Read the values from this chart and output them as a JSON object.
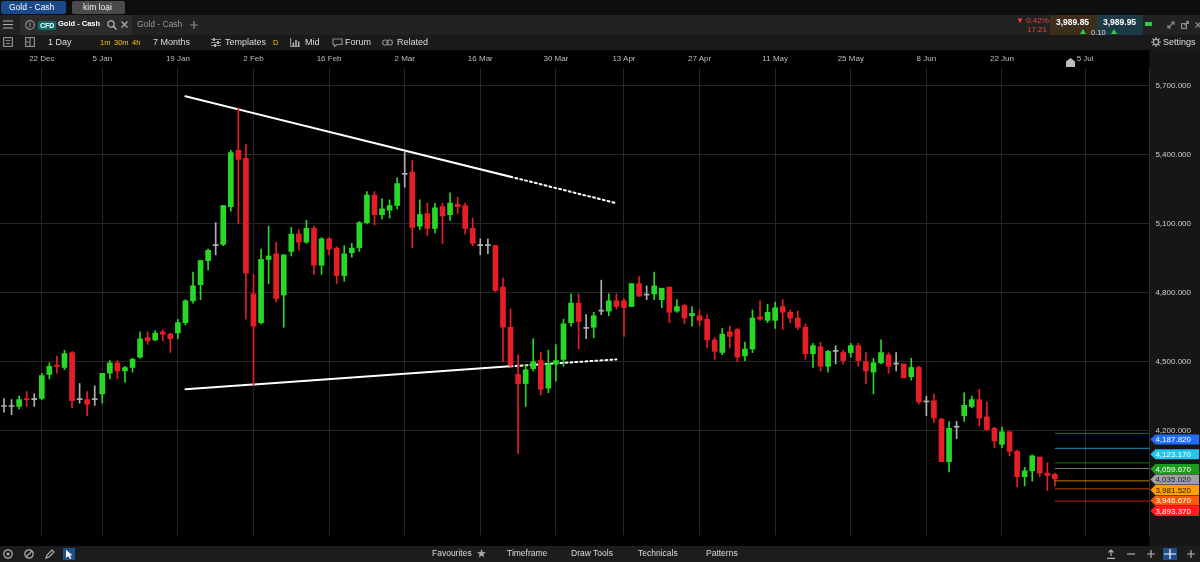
{
  "chart_data": {
    "type": "candlestick",
    "categories": [
      null,
      null,
      null,
      null,
      null,
      "22 Dec",
      null,
      null,
      null,
      null,
      null,
      null,
      null,
      "5 Jan",
      null,
      null,
      null,
      null,
      null,
      null,
      null,
      null,
      null,
      "19 Jan",
      null,
      null,
      null,
      null,
      null,
      null,
      null,
      null,
      null,
      "2 Feb",
      null,
      null,
      null,
      null,
      null,
      null,
      null,
      null,
      null,
      "16 Feb",
      null,
      null,
      null,
      null,
      null,
      null,
      null,
      null,
      null,
      "2 Mar",
      null,
      null,
      null,
      null,
      null,
      null,
      null,
      null,
      null,
      "16 Mar",
      null,
      null,
      null,
      null,
      null,
      null,
      null,
      null,
      null,
      "30 Mar",
      null,
      null,
      null,
      null,
      null,
      null,
      null,
      null,
      "13 Apr",
      null,
      null,
      null,
      null,
      null,
      null,
      null,
      null,
      null,
      "27 Apr",
      null,
      null,
      null,
      null,
      null,
      null,
      null,
      null,
      null,
      "11 May",
      null,
      null,
      null,
      null,
      null,
      null,
      null,
      null,
      null,
      "25 May",
      null,
      null,
      null,
      null,
      null,
      null,
      null,
      null,
      null,
      "8 Jun",
      null,
      null,
      null,
      null,
      null,
      null,
      null,
      null,
      null,
      "22 Jun",
      null,
      null,
      null,
      null,
      null,
      null,
      null,
      null,
      null,
      null,
      "5 Jul",
      null,
      null,
      null,
      null,
      null,
      null,
      null,
      null
    ],
    "ohlc": [
      [
        4305,
        4340,
        4280,
        4305
      ],
      [
        4305,
        4335,
        4270,
        4305
      ],
      [
        4305,
        4350,
        4295,
        4335
      ],
      [
        4340,
        4370,
        4305,
        4335
      ],
      [
        4335,
        4360,
        4305,
        4335
      ],
      [
        4340,
        4450,
        4335,
        4440
      ],
      [
        4445,
        4495,
        4425,
        4480
      ],
      [
        4485,
        4525,
        4450,
        4480
      ],
      [
        4475,
        4550,
        4465,
        4535
      ],
      [
        4540,
        4545,
        4300,
        4330
      ],
      [
        4335,
        4405,
        4320,
        4335
      ],
      [
        4335,
        4370,
        4265,
        4315
      ],
      [
        4335,
        4395,
        4310,
        4335
      ],
      [
        4360,
        4450,
        4320,
        4450
      ],
      [
        4450,
        4505,
        4425,
        4495
      ],
      [
        4495,
        4505,
        4425,
        4460
      ],
      [
        4460,
        4480,
        4410,
        4475
      ],
      [
        4475,
        4515,
        4455,
        4510
      ],
      [
        4520,
        4630,
        4515,
        4600
      ],
      [
        4605,
        4630,
        4575,
        4590
      ],
      [
        4595,
        4635,
        4590,
        4625
      ],
      [
        4630,
        4640,
        4590,
        4620
      ],
      [
        4620,
        4625,
        4540,
        4600
      ],
      [
        4625,
        4685,
        4600,
        4670
      ],
      [
        4670,
        4770,
        4660,
        4765
      ],
      [
        4765,
        4890,
        4755,
        4830
      ],
      [
        4835,
        4940,
        4770,
        4940
      ],
      [
        4940,
        4990,
        4900,
        4985
      ],
      [
        5005,
        5105,
        4965,
        5005
      ],
      [
        5010,
        5180,
        5005,
        5180
      ],
      [
        5175,
        5420,
        5155,
        5410
      ],
      [
        5420,
        5605,
        5100,
        5380
      ],
      [
        5385,
        5445,
        4685,
        4885
      ],
      [
        4795,
        4880,
        4400,
        4655
      ],
      [
        4670,
        4990,
        4665,
        4945
      ],
      [
        4945,
        5090,
        4840,
        4960
      ],
      [
        4970,
        5020,
        4760,
        4775
      ],
      [
        4790,
        4965,
        4650,
        4965
      ],
      [
        4980,
        5085,
        4960,
        5055
      ],
      [
        5055,
        5075,
        4985,
        5020
      ],
      [
        5020,
        5115,
        5015,
        5080
      ],
      [
        5080,
        5090,
        4880,
        4920
      ],
      [
        4920,
        5040,
        4880,
        5035
      ],
      [
        5035,
        5040,
        4965,
        4990
      ],
      [
        4995,
        5000,
        4840,
        4875
      ],
      [
        4875,
        5005,
        4850,
        4970
      ],
      [
        4975,
        5015,
        4955,
        4995
      ],
      [
        4995,
        5110,
        4980,
        5105
      ],
      [
        5105,
        5240,
        5100,
        5225
      ],
      [
        5225,
        5240,
        5095,
        5140
      ],
      [
        5140,
        5210,
        5120,
        5165
      ],
      [
        5160,
        5205,
        5125,
        5180
      ],
      [
        5180,
        5300,
        5165,
        5275
      ],
      [
        5315,
        5415,
        5260,
        5315
      ],
      [
        5325,
        5375,
        4995,
        5085
      ],
      [
        5090,
        5205,
        5075,
        5140
      ],
      [
        5145,
        5190,
        5050,
        5080
      ],
      [
        5080,
        5190,
        5060,
        5170
      ],
      [
        5175,
        5190,
        5015,
        5135
      ],
      [
        5140,
        5235,
        5115,
        5190
      ],
      [
        5185,
        5215,
        5145,
        5175
      ],
      [
        5180,
        5190,
        5055,
        5080
      ],
      [
        5080,
        5125,
        5005,
        5015
      ],
      [
        5005,
        5035,
        4965,
        5005
      ],
      [
        5005,
        5035,
        4970,
        5005
      ],
      [
        5005,
        5005,
        4805,
        4810
      ],
      [
        4825,
        4865,
        4500,
        4650
      ],
      [
        4650,
        4730,
        4475,
        4485
      ],
      [
        4445,
        4530,
        4100,
        4405
      ],
      [
        4405,
        4485,
        4305,
        4465
      ],
      [
        4470,
        4600,
        4460,
        4500
      ],
      [
        4505,
        4540,
        4355,
        4380
      ],
      [
        4385,
        4550,
        4365,
        4490
      ],
      [
        4490,
        4575,
        4415,
        4505
      ],
      [
        4510,
        4685,
        4480,
        4665
      ],
      [
        4670,
        4795,
        4655,
        4755
      ],
      [
        4755,
        4795,
        4555,
        4675
      ],
      [
        4645,
        4705,
        4600,
        4645
      ],
      [
        4650,
        4715,
        4605,
        4700
      ],
      [
        4720,
        4855,
        4705,
        4720
      ],
      [
        4720,
        4795,
        4700,
        4765
      ],
      [
        4765,
        4795,
        4730,
        4740
      ],
      [
        4765,
        4775,
        4610,
        4735
      ],
      [
        4740,
        4840,
        4740,
        4840
      ],
      [
        4840,
        4870,
        4785,
        4785
      ],
      [
        4790,
        4830,
        4770,
        4790
      ],
      [
        4795,
        4890,
        4770,
        4830
      ],
      [
        4770,
        4820,
        4735,
        4820
      ],
      [
        4825,
        4825,
        4670,
        4715
      ],
      [
        4720,
        4770,
        4715,
        4740
      ],
      [
        4745,
        4750,
        4665,
        4690
      ],
      [
        4700,
        4740,
        4655,
        4710
      ],
      [
        4700,
        4725,
        4655,
        4680
      ],
      [
        4685,
        4705,
        4560,
        4595
      ],
      [
        4595,
        4605,
        4510,
        4545
      ],
      [
        4540,
        4645,
        4530,
        4620
      ],
      [
        4630,
        4655,
        4560,
        4610
      ],
      [
        4640,
        4645,
        4500,
        4520
      ],
      [
        4525,
        4585,
        4505,
        4555
      ],
      [
        4555,
        4725,
        4540,
        4690
      ],
      [
        4695,
        4765,
        4680,
        4685
      ],
      [
        4680,
        4750,
        4670,
        4715
      ],
      [
        4680,
        4760,
        4645,
        4735
      ],
      [
        4740,
        4770,
        4640,
        4715
      ],
      [
        4715,
        4725,
        4670,
        4690
      ],
      [
        4690,
        4720,
        4640,
        4650
      ],
      [
        4650,
        4665,
        4510,
        4535
      ],
      [
        4535,
        4580,
        4475,
        4570
      ],
      [
        4565,
        4585,
        4460,
        4480
      ],
      [
        4480,
        4550,
        4455,
        4545
      ],
      [
        4545,
        4570,
        4490,
        4545
      ],
      [
        4540,
        4550,
        4490,
        4505
      ],
      [
        4540,
        4580,
        4520,
        4570
      ],
      [
        4570,
        4580,
        4480,
        4505
      ],
      [
        4500,
        4540,
        4405,
        4460
      ],
      [
        4455,
        4515,
        4360,
        4495
      ],
      [
        4495,
        4595,
        4490,
        4540
      ],
      [
        4530,
        4540,
        4450,
        4480
      ],
      [
        4490,
        4540,
        4460,
        4490
      ],
      [
        4490,
        4490,
        4430,
        4430
      ],
      [
        4435,
        4515,
        4420,
        4475
      ],
      [
        4475,
        4480,
        4315,
        4325
      ],
      [
        4325,
        4350,
        4265,
        4325
      ],
      [
        4330,
        4360,
        4235,
        4255
      ],
      [
        4250,
        4255,
        4065,
        4065
      ],
      [
        4065,
        4240,
        4020,
        4210
      ],
      [
        4215,
        4240,
        4165,
        4215
      ],
      [
        4265,
        4365,
        4240,
        4310
      ],
      [
        4305,
        4350,
        4300,
        4335
      ],
      [
        4335,
        4380,
        4220,
        4255
      ],
      [
        4260,
        4325,
        4200,
        4205
      ],
      [
        4210,
        4215,
        4125,
        4155
      ],
      [
        4140,
        4215,
        4125,
        4195
      ],
      [
        4195,
        4195,
        4090,
        4110
      ],
      [
        4110,
        4115,
        3955,
        4000
      ],
      [
        4000,
        4040,
        3960,
        4025
      ],
      [
        4025,
        4095,
        3980,
        4090
      ],
      [
        4085,
        4085,
        4000,
        4015
      ],
      [
        4015,
        4060,
        3940,
        4005
      ],
      [
        4010,
        4015,
        3960,
        3990
      ],
      null,
      null,
      null,
      null,
      null,
      null,
      null,
      null,
      null,
      null,
      null,
      null
    ],
    "colors": [
      "#b0b0b0",
      "#b0b0b0",
      "#27d827",
      "#e61e26",
      "#b0b0b0",
      "#27d827",
      "#27d827",
      "#e61e26",
      "#27d827",
      "#e61e26",
      "#b0b0b0",
      "#e61e26",
      "#b0b0b0",
      "#27d827",
      "#27d827",
      "#e61e26",
      "#27d827",
      "#27d827",
      "#27d827",
      "#e61e26",
      "#27d827",
      "#e61e26",
      "#e61e26",
      "#27d827",
      "#27d827",
      "#27d827",
      "#27d827",
      "#27d827",
      "#b0b0b0",
      "#27d827",
      "#27d827",
      "#e61e26",
      "#e61e26",
      "#e61e26",
      "#27d827",
      "#27d827",
      "#e61e26",
      "#27d827",
      "#27d827",
      "#e61e26",
      "#27d827",
      "#e61e26",
      "#27d827",
      "#e61e26",
      "#e61e26",
      "#27d827",
      "#27d827",
      "#27d827",
      "#27d827",
      "#e61e26",
      "#27d827",
      "#27d827",
      "#27d827",
      "#b0b0b0",
      "#e61e26",
      "#27d827",
      "#e61e26",
      "#27d827",
      "#e61e26",
      "#27d827",
      "#e61e26",
      "#e61e26",
      "#e61e26",
      "#b0b0b0",
      "#b0b0b0",
      "#e61e26",
      "#e61e26",
      "#e61e26",
      "#e61e26",
      "#27d827",
      "#27d827",
      "#e61e26",
      "#27d827",
      "#27d827",
      "#27d827",
      "#27d827",
      "#e61e26",
      "#b0b0b0",
      "#27d827",
      "#b0b0b0",
      "#27d827",
      "#e61e26",
      "#e61e26",
      "#27d827",
      "#e61e26",
      "#b0b0b0",
      "#27d827",
      "#27d827",
      "#e61e26",
      "#27d827",
      "#e61e26",
      "#27d827",
      "#e61e26",
      "#e61e26",
      "#e61e26",
      "#27d827",
      "#e61e26",
      "#e61e26",
      "#27d827",
      "#27d827",
      "#e61e26",
      "#27d827",
      "#27d827",
      "#e61e26",
      "#e61e26",
      "#e61e26",
      "#e61e26",
      "#27d827",
      "#e61e26",
      "#27d827",
      "#b0b0b0",
      "#e61e26",
      "#27d827",
      "#e61e26",
      "#e61e26",
      "#27d827",
      "#27d827",
      "#e61e26",
      "#b0b0b0",
      "#e61e26",
      "#27d827",
      "#e61e26",
      "#b0b0b0",
      "#e61e26",
      "#e61e26",
      "#27d827",
      "#b0b0b0",
      "#27d827",
      "#27d827",
      "#e61e26",
      "#e61e26",
      "#e61e26",
      "#27d827",
      "#e61e26",
      "#e61e26",
      "#27d827",
      "#27d827",
      "#e61e26",
      "#e61e26",
      "#e61e26",
      null,
      null,
      null,
      null,
      null,
      null,
      null,
      null,
      null,
      null,
      null,
      null
    ],
    "series": [
      {
        "type": "line",
        "color": "#ffffff",
        "line_style": "solid",
        "values": [
          null,
          null,
          null,
          null,
          null,
          null,
          null,
          null,
          null,
          null,
          null,
          null,
          null,
          null,
          null,
          null,
          null,
          null,
          null,
          null,
          null,
          null,
          null,
          null,
          5655,
          null,
          null,
          null,
          null,
          null,
          null,
          null,
          null,
          null,
          null,
          null,
          null,
          null,
          null,
          null,
          null,
          null,
          null,
          null,
          null,
          null,
          null,
          null,
          null,
          null,
          null,
          null,
          null,
          null,
          null,
          null,
          null,
          null,
          null,
          null,
          null,
          null,
          null,
          null,
          null,
          null,
          null,
          5305,
          null,
          null,
          null,
          null,
          null,
          null,
          null,
          null,
          null,
          null,
          null,
          null,
          null,
          null,
          null,
          null,
          null,
          null,
          null,
          null,
          null,
          null,
          null,
          null,
          null,
          null,
          null,
          null,
          null,
          null,
          null,
          null,
          null,
          null,
          null,
          null,
          null,
          null,
          null,
          null,
          null,
          null,
          null,
          null,
          null,
          null,
          null,
          null,
          null,
          null,
          null,
          null,
          null,
          null,
          null,
          null,
          null,
          null,
          null,
          null,
          null,
          null,
          null,
          null,
          null,
          null,
          null,
          null,
          null,
          null,
          null,
          null,
          null,
          null,
          null,
          null,
          null,
          null,
          null,
          null,
          null,
          null,
          null,
          null
        ]
      },
      {
        "type": "line",
        "color": "#ffffff",
        "line_style": "dotted",
        "values": [
          null,
          null,
          null,
          null,
          null,
          null,
          null,
          null,
          null,
          null,
          null,
          null,
          null,
          null,
          null,
          null,
          null,
          null,
          null,
          null,
          null,
          null,
          null,
          null,
          null,
          null,
          null,
          null,
          null,
          null,
          null,
          null,
          null,
          null,
          null,
          null,
          null,
          null,
          null,
          null,
          null,
          null,
          null,
          null,
          null,
          null,
          null,
          null,
          null,
          null,
          null,
          null,
          null,
          null,
          null,
          null,
          null,
          null,
          null,
          null,
          null,
          null,
          null,
          null,
          null,
          null,
          null,
          5305,
          null,
          null,
          null,
          null,
          null,
          null,
          null,
          null,
          null,
          null,
          null,
          null,
          null,
          5190,
          null,
          null,
          null,
          null,
          null,
          null,
          null,
          null,
          null,
          null,
          null,
          null,
          null,
          null,
          null,
          null,
          null,
          null,
          null,
          null,
          null,
          null,
          null,
          null,
          null,
          null,
          null,
          null,
          null,
          null,
          null,
          null,
          null,
          null,
          null,
          null,
          null,
          null,
          null,
          null,
          null,
          null,
          null,
          null,
          null,
          null,
          null,
          null,
          null,
          null,
          null,
          null,
          null,
          null,
          null,
          null,
          null,
          null,
          null,
          null,
          null,
          null,
          null,
          null,
          null,
          null,
          null,
          null,
          null,
          null
        ]
      },
      {
        "type": "line",
        "color": "#ffffff",
        "line_style": "solid",
        "values": [
          null,
          null,
          null,
          null,
          null,
          null,
          null,
          null,
          null,
          null,
          null,
          null,
          null,
          null,
          null,
          null,
          null,
          null,
          null,
          null,
          null,
          null,
          null,
          null,
          4380,
          null,
          null,
          null,
          null,
          null,
          null,
          null,
          null,
          null,
          null,
          null,
          null,
          null,
          null,
          null,
          null,
          null,
          null,
          null,
          null,
          null,
          null,
          null,
          null,
          null,
          null,
          null,
          null,
          null,
          null,
          null,
          null,
          null,
          null,
          null,
          null,
          null,
          null,
          null,
          null,
          null,
          null,
          4480,
          null,
          null,
          null,
          null,
          null,
          null,
          null,
          null,
          null,
          null,
          null,
          null,
          null,
          null,
          null,
          null,
          null,
          null,
          null,
          null,
          null,
          null,
          null,
          null,
          null,
          null,
          null,
          null,
          null,
          null,
          null,
          null,
          null,
          null,
          null,
          null,
          null,
          null,
          null,
          null,
          null,
          null,
          null,
          null,
          null,
          null,
          null,
          null,
          null,
          null,
          null,
          null,
          null,
          null,
          null,
          null,
          null,
          null,
          null,
          null,
          null,
          null,
          null,
          null,
          null,
          null,
          null,
          null,
          null,
          null,
          null,
          null,
          null,
          null,
          null,
          null,
          null,
          null,
          null,
          null,
          null,
          null,
          null,
          null
        ]
      },
      {
        "type": "line",
        "color": "#ffffff",
        "line_style": "dotted",
        "values": [
          null,
          null,
          null,
          null,
          null,
          null,
          null,
          null,
          null,
          null,
          null,
          null,
          null,
          null,
          null,
          null,
          null,
          null,
          null,
          null,
          null,
          null,
          null,
          null,
          null,
          null,
          null,
          null,
          null,
          null,
          null,
          null,
          null,
          null,
          null,
          null,
          null,
          null,
          null,
          null,
          null,
          null,
          null,
          null,
          null,
          null,
          null,
          null,
          null,
          null,
          null,
          null,
          null,
          null,
          null,
          null,
          null,
          null,
          null,
          null,
          null,
          null,
          null,
          null,
          null,
          null,
          null,
          4480,
          null,
          null,
          null,
          null,
          null,
          null,
          null,
          null,
          null,
          null,
          null,
          null,
          null,
          4510,
          null,
          null,
          null,
          null,
          null,
          null,
          null,
          null,
          null,
          null,
          null,
          null,
          null,
          null,
          null,
          null,
          null,
          null,
          null,
          null,
          null,
          null,
          null,
          null,
          null,
          null,
          null,
          null,
          null,
          null,
          null,
          null,
          null,
          null,
          null,
          null,
          null,
          null,
          null,
          null,
          null,
          null,
          null,
          null,
          null,
          null,
          null,
          null,
          null,
          null,
          null,
          null,
          null,
          null,
          null,
          null,
          null,
          null,
          null,
          null,
          null,
          null,
          null,
          null,
          null,
          null,
          null,
          null,
          null,
          null
        ]
      }
    ],
    "ylim": [
      3745,
      5780
    ],
    "yticks": [
      {
        "value": 4200,
        "label": "4,200.000"
      },
      {
        "value": 4500,
        "label": "4,500.000"
      },
      {
        "value": 4800,
        "label": "4,800.000"
      },
      {
        "value": 5100,
        "label": "5,100.000"
      },
      {
        "value": 5400,
        "label": "5,400.000"
      },
      {
        "value": 5700,
        "label": "5,700.000"
      }
    ],
    "ref_lines": [
      {
        "axis": "y",
        "value": 4187.82,
        "label": "4,187.820",
        "color": "#1f6cff"
      },
      {
        "axis": "y",
        "value": 4123.17,
        "label": "4,123.170",
        "color": "#22c4f2"
      },
      {
        "axis": "y",
        "value": 4059.67,
        "label": "4,059.670",
        "color": "#1d9a1d"
      },
      {
        "axis": "y",
        "value": 4035.02,
        "label": "4,035.020",
        "color": "#a0a0a0"
      },
      {
        "axis": "y",
        "value": 3981.52,
        "label": "3,981.520",
        "color": "#ffa000"
      },
      {
        "axis": "y",
        "value": 3946.67,
        "label": "3,946.670",
        "color": "#ff5a0a"
      },
      {
        "axis": "y",
        "value": 3893.37,
        "label": "3,893.370",
        "color": "#ff1e1e"
      }
    ],
    "grid": true,
    "annotations": [
      "Gold - Cash",
      "kim loại",
      "CFD",
      "Gold - Cash",
      "Gold - Cash",
      "▼ 0.42%",
      "17.21",
      "3,989.85",
      "0.10",
      "3,989.95",
      "1 Day",
      "1m",
      "30m",
      "4h",
      "7 Months",
      "Templates",
      "D",
      "Mid",
      "Forum",
      "Related",
      "Settings",
      "Favourites",
      "Timeframe",
      "Draw Tools",
      "Technicals",
      "Patterns"
    ]
  }
}
